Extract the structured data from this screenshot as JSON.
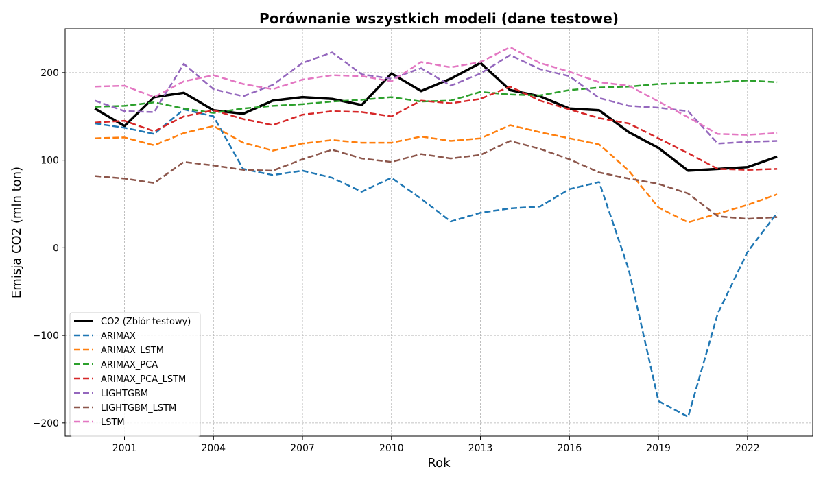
{
  "chart_data": {
    "type": "line",
    "title": "Porównanie wszystkich modeli (dane testowe)",
    "xlabel": "Rok",
    "ylabel": "Emisja CO2 (mln ton)",
    "x": [
      2000,
      2001,
      2002,
      2003,
      2004,
      2005,
      2006,
      2007,
      2008,
      2009,
      2010,
      2011,
      2012,
      2013,
      2014,
      2015,
      2016,
      2017,
      2018,
      2019,
      2020,
      2021,
      2022,
      2023
    ],
    "xlim": [
      1999.0,
      2024.2
    ],
    "ylim": [
      -215,
      250
    ],
    "xticks": [
      2001,
      2004,
      2007,
      2010,
      2013,
      2016,
      2019,
      2022
    ],
    "yticks": [
      -200,
      -100,
      0,
      100,
      200
    ],
    "grid": true,
    "legend_position": "lower-left",
    "series": [
      {
        "name": "CO2 (Zbiór testowy)",
        "color": "#000000",
        "style": "solid",
        "width": 3.5,
        "values": [
          159,
          139,
          172,
          177,
          157,
          153,
          168,
          172,
          170,
          163,
          199,
          179,
          193,
          211,
          180,
          173,
          159,
          157,
          132,
          114,
          88,
          90,
          92,
          104
        ]
      },
      {
        "name": "ARIMAX",
        "color": "#1f77b4",
        "style": "dashed",
        "width": 2.5,
        "values": [
          142,
          137,
          130,
          158,
          150,
          90,
          83,
          88,
          80,
          64,
          80,
          56,
          30,
          40,
          45,
          47,
          67,
          75,
          -25,
          -175,
          -193,
          -75,
          -5,
          40
        ]
      },
      {
        "name": "ARIMAX_LSTM",
        "color": "#ff7f0e",
        "style": "dashed",
        "width": 2.5,
        "values": [
          125,
          126,
          117,
          131,
          139,
          120,
          111,
          119,
          123,
          120,
          120,
          127,
          122,
          125,
          140,
          132,
          125,
          118,
          88,
          46,
          29,
          39,
          49,
          61
        ]
      },
      {
        "name": "ARIMAX_PCA",
        "color": "#2ca02c",
        "style": "dashed",
        "width": 2.5,
        "values": [
          161,
          162,
          166,
          159,
          154,
          159,
          162,
          164,
          167,
          169,
          172,
          167,
          168,
          178,
          175,
          174,
          180,
          183,
          184,
          187,
          188,
          189,
          191,
          189
        ]
      },
      {
        "name": "ARIMAX_PCA_LSTM",
        "color": "#d62728",
        "style": "dashed",
        "width": 2.5,
        "values": [
          143,
          145,
          133,
          150,
          157,
          147,
          140,
          152,
          156,
          155,
          150,
          168,
          165,
          170,
          184,
          168,
          158,
          148,
          142,
          125,
          108,
          90,
          89,
          90
        ]
      },
      {
        "name": "LIGHTGBM",
        "color": "#9467bd",
        "style": "dashed",
        "width": 2.5,
        "values": [
          168,
          156,
          155,
          210,
          181,
          173,
          186,
          211,
          223,
          198,
          193,
          205,
          185,
          199,
          220,
          204,
          196,
          171,
          162,
          160,
          156,
          119,
          121,
          122
        ]
      },
      {
        "name": "LIGHTGBM_LSTM",
        "color": "#8c564b",
        "style": "dashed",
        "width": 2.5,
        "values": [
          82,
          79,
          74,
          98,
          94,
          89,
          88,
          101,
          112,
          102,
          98,
          107,
          102,
          106,
          122,
          113,
          101,
          86,
          79,
          73,
          62,
          36,
          33,
          35
        ]
      },
      {
        "name": "LSTM",
        "color": "#e377c2",
        "style": "dashed",
        "width": 2.5,
        "values": [
          184,
          185,
          172,
          190,
          197,
          187,
          181,
          192,
          197,
          196,
          190,
          212,
          206,
          212,
          229,
          211,
          201,
          189,
          185,
          167,
          149,
          130,
          129,
          131
        ]
      }
    ]
  }
}
